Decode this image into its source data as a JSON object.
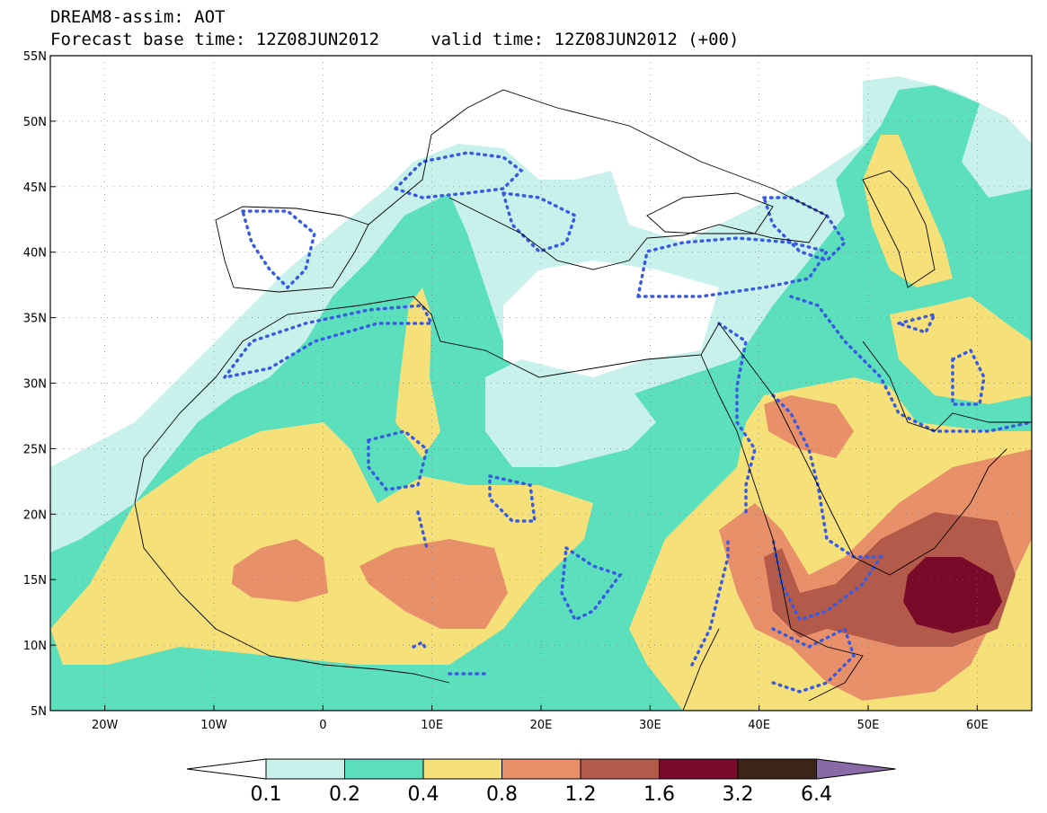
{
  "title": {
    "line1": "DREAM8-assim: AOT",
    "line2": "Forecast base time: 12Z08JUN2012     valid time: 12Z08JUN2012 (+00)"
  },
  "map": {
    "lon_range": [
      -25,
      65
    ],
    "lat_range": [
      5,
      55
    ],
    "lat_labels": [
      "55N",
      "50N",
      "45N",
      "40N",
      "35N",
      "30N",
      "25N",
      "20N",
      "15N",
      "10N",
      "5N"
    ],
    "lat_values": [
      55,
      50,
      45,
      40,
      35,
      30,
      25,
      20,
      15,
      10,
      5
    ],
    "lon_labels": [
      "20W",
      "10W",
      "0",
      "10E",
      "20E",
      "30E",
      "40E",
      "50E",
      "60E"
    ],
    "lon_values": [
      -20,
      -10,
      0,
      10,
      20,
      30,
      40,
      50,
      60
    ]
  },
  "colorbar": {
    "levels": [
      "0.1",
      "0.2",
      "0.4",
      "0.8",
      "1.2",
      "1.6",
      "3.2",
      "6.4"
    ],
    "colors": [
      "#ffffff",
      "#c8f1ec",
      "#5bdfbd",
      "#f5e07a",
      "#e8906a",
      "#b45a4b",
      "#7a0a2a",
      "#3c2418",
      "#8a6aa6"
    ]
  },
  "colors": {
    "white": "#ffffff",
    "light_cyan": "#c8f1ec",
    "green": "#5bdfbd",
    "yellow": "#f5e07a",
    "orange": "#e8906a",
    "brown": "#b45a4b",
    "maroon": "#7a0a2a",
    "dotted_contour": "#3a5be0"
  }
}
